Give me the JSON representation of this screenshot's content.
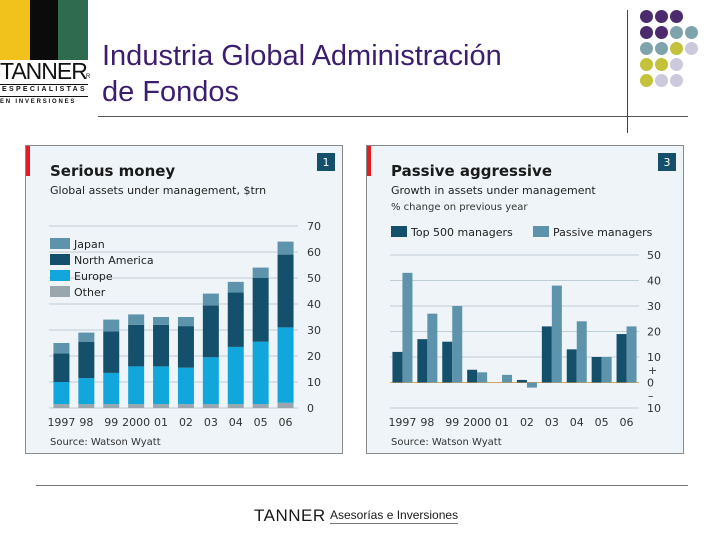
{
  "header": {
    "title_line1": "Industria Global Administración",
    "title_line2": "de Fondos",
    "logo": {
      "name": "TANNER",
      "registered": "R",
      "line1": "ESPECIALISTAS",
      "line2": "EN INVERSIONES",
      "colors": [
        "#f0c21b",
        "#0b0b0b",
        "#2f6b4f"
      ]
    }
  },
  "decor_dots_colors": {
    "purple": "#4b2a6e",
    "teal": "#7ea3ac",
    "olive": "#c3c23a",
    "lavender": "#cdc9dc"
  },
  "footer": {
    "brand": "TANNER",
    "tagline": "Asesorías e Inversiones"
  },
  "chart_data": [
    {
      "type": "bar",
      "stacked": true,
      "badge": "1",
      "title": "Serious money",
      "subtitle": "Global assets under management, $trn",
      "source": "Source: Watson Wyatt",
      "categories": [
        "1997",
        "98",
        "99",
        "2000",
        "01",
        "02",
        "03",
        "04",
        "05",
        "06"
      ],
      "ylim": [
        0,
        70
      ],
      "yticks": [
        0,
        10,
        20,
        30,
        40,
        50,
        60,
        70
      ],
      "legend_position": "top-left",
      "series": [
        {
          "name": "Other",
          "color": "#9aa6ad",
          "values": [
            1.5,
            1.5,
            1.5,
            1.5,
            1.5,
            1.5,
            1.5,
            1.5,
            1.5,
            2
          ]
        },
        {
          "name": "Europe",
          "color": "#12a7dc",
          "values": [
            8.5,
            10,
            12,
            14.5,
            14.5,
            14,
            18,
            22,
            24,
            29
          ]
        },
        {
          "name": "North America",
          "color": "#14506b",
          "values": [
            11,
            14,
            16,
            16,
            16,
            16,
            20,
            21,
            24.5,
            28
          ]
        },
        {
          "name": "Japan",
          "color": "#5d93ab",
          "values": [
            4,
            3.5,
            4.5,
            4,
            3,
            3.5,
            4.5,
            4,
            4,
            5
          ]
        }
      ]
    },
    {
      "type": "bar",
      "stacked": false,
      "badge": "3",
      "title": "Passive aggressive",
      "subtitle": "Growth in assets under management",
      "unit": "% change on previous year",
      "source": "Source: Watson Wyatt",
      "categories": [
        "1997",
        "98",
        "99",
        "2000",
        "01",
        "02",
        "03",
        "04",
        "05",
        "06"
      ],
      "ylim": [
        -10,
        50
      ],
      "yticks": [
        -10,
        0,
        10,
        20,
        30,
        40,
        50
      ],
      "ytick_labels": [
        "10",
        "0",
        "10",
        "20",
        "30",
        "40",
        "50"
      ],
      "sign_marks": [
        "+",
        "–"
      ],
      "legend_position": "top",
      "series": [
        {
          "name": "Top 500 managers",
          "color": "#14506b",
          "values": [
            12,
            17,
            16,
            5,
            0,
            1,
            22,
            13,
            10,
            19
          ]
        },
        {
          "name": "Passive managers",
          "color": "#5d93ab",
          "values": [
            43,
            27,
            30,
            4,
            3,
            -2,
            38,
            24,
            10,
            22
          ]
        }
      ]
    }
  ]
}
